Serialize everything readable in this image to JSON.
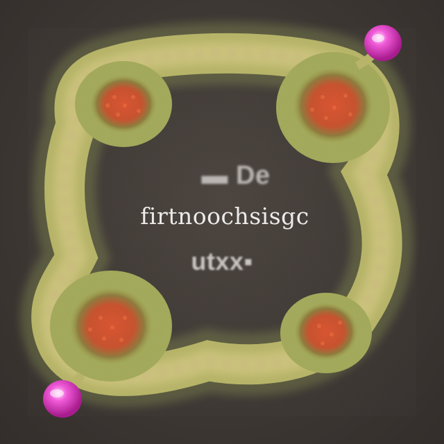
{
  "image": {
    "top_text": "▬ De",
    "main_text": "firtnoochsisgc",
    "bottom_text": "utxx▪",
    "background_color": "#3f3935",
    "ring_color": "#c9c071",
    "node_color": "#d8532e",
    "cap_color": "#e23fc6"
  }
}
